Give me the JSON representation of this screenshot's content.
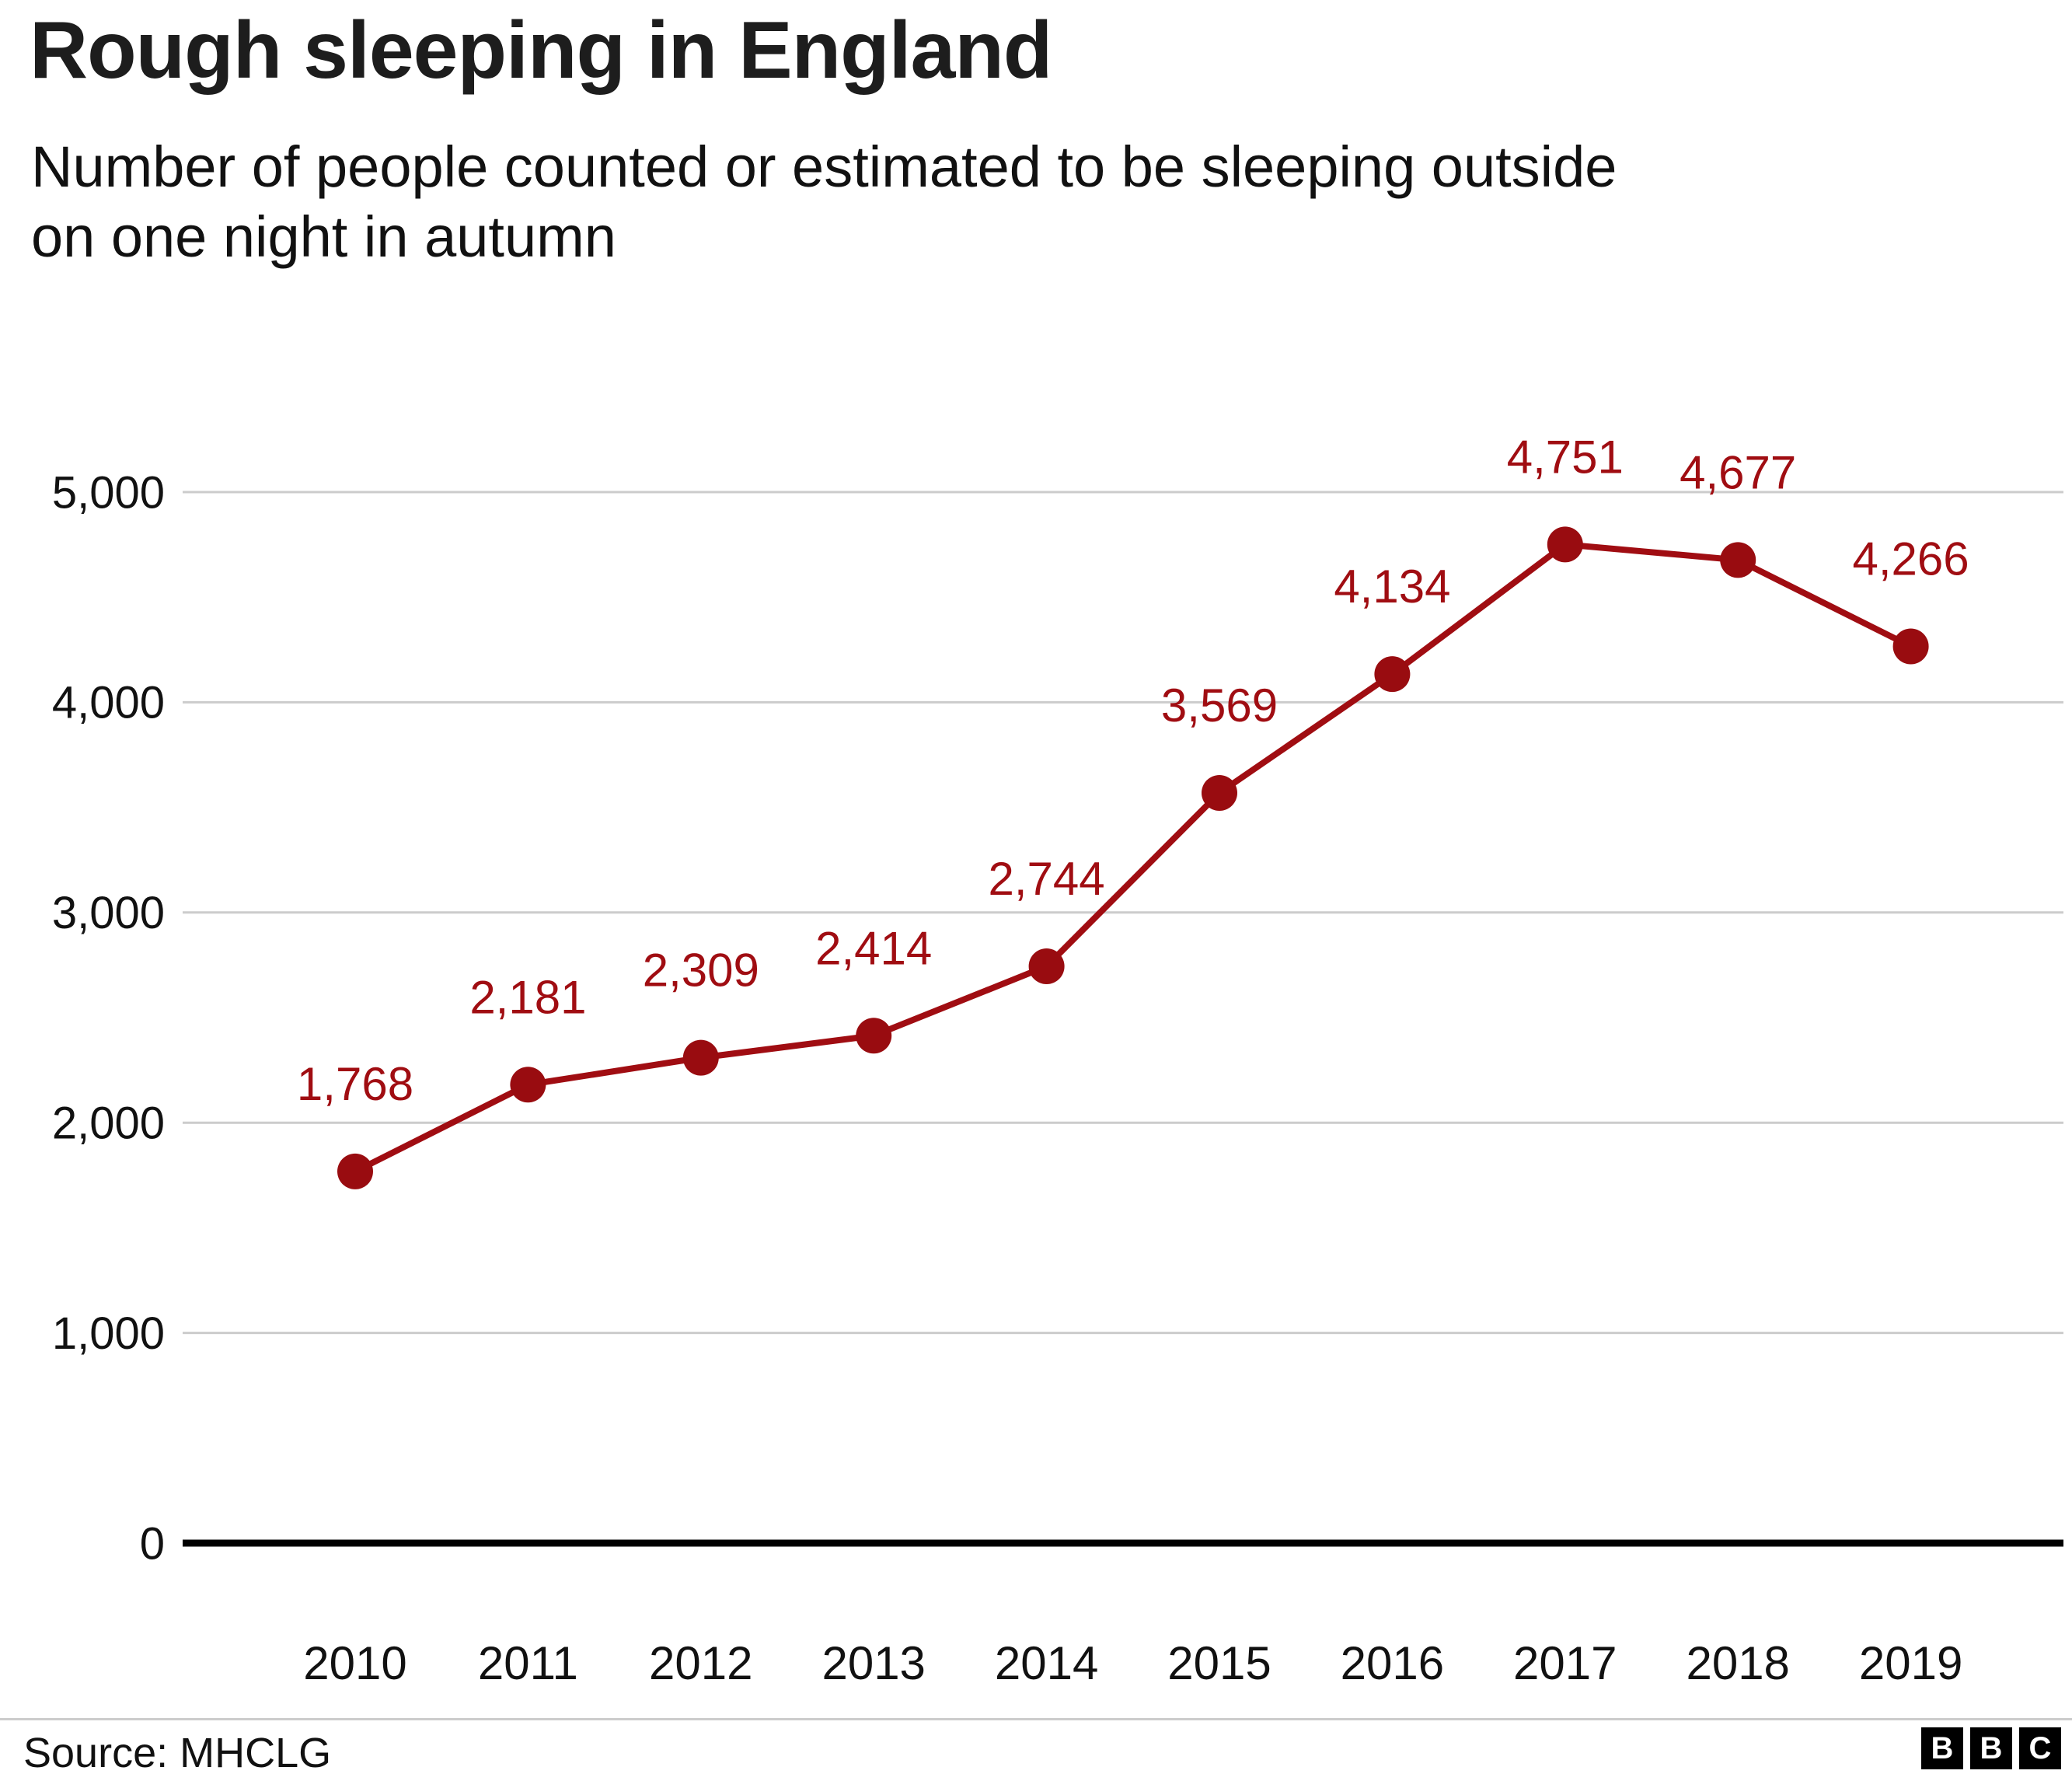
{
  "header": {
    "title": "Rough sleeping in England",
    "subtitle": "Number of people counted or estimated to be sleeping outside\non one night in autumn"
  },
  "chart_data": {
    "type": "line",
    "title": "Rough sleeping in England",
    "subtitle": "Number of people counted or estimated to be sleeping outside on one night in autumn",
    "x": [
      "2010",
      "2011",
      "2012",
      "2013",
      "2014",
      "2015",
      "2016",
      "2017",
      "2018",
      "2019"
    ],
    "values": [
      1768,
      2181,
      2309,
      2414,
      2744,
      3569,
      4134,
      4751,
      4677,
      4266
    ],
    "point_labels": [
      "1,768",
      "2,181",
      "2,309",
      "2,414",
      "2,744",
      "3,569",
      "4,134",
      "4,751",
      "4,677",
      "4,266"
    ],
    "xlabel": "",
    "ylabel": "",
    "ylim": [
      0,
      5000
    ],
    "yticks": [
      0,
      1000,
      2000,
      3000,
      4000,
      5000
    ],
    "ytick_labels": [
      "0",
      "1,000",
      "2,000",
      "3,000",
      "4,000",
      "5,000"
    ],
    "grid": true,
    "legend": "none",
    "line_color": "#a00d12",
    "marker_color": "#990c10",
    "label_color": "#a00d12"
  },
  "colors": {
    "accent": "#a00d12",
    "grid": "#cccccc",
    "axis": "#000000",
    "text": "#111111",
    "background": "#ffffff"
  },
  "footer": {
    "source": "Source: MHCLG",
    "logo_letters": [
      "B",
      "B",
      "C"
    ]
  }
}
